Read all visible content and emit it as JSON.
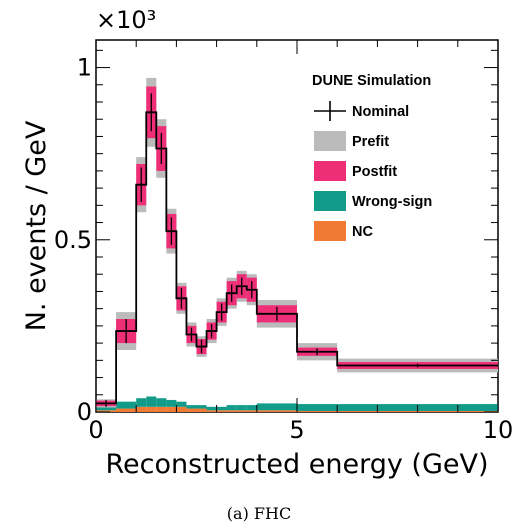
{
  "chart_data": {
    "type": "bar",
    "xlabel": "Reconstructed energy (GeV)",
    "ylabel": "N. events / GeV",
    "y_multiplier": "×10³",
    "xlim": [
      0,
      10
    ],
    "ylim": [
      0,
      1.08
    ],
    "x_tick_labels": [
      "0",
      "5",
      "10"
    ],
    "y_tick_labels": [
      "0",
      "0.5",
      "1"
    ],
    "bin_edges": [
      0,
      0.5,
      1.0,
      1.25,
      1.5,
      1.75,
      2.0,
      2.25,
      2.5,
      2.75,
      3.0,
      3.25,
      3.5,
      3.75,
      4.0,
      5.0,
      6.0,
      10.0
    ],
    "series": [
      {
        "name": "Nominal",
        "style": "errorbar",
        "color": "#000000",
        "values": [
          0.025,
          0.235,
          0.66,
          0.87,
          0.765,
          0.525,
          0.33,
          0.225,
          0.19,
          0.235,
          0.29,
          0.345,
          0.365,
          0.355,
          0.285,
          0.175,
          0.135
        ],
        "errors": [
          0.01,
          0.035,
          0.05,
          0.055,
          0.045,
          0.04,
          0.03,
          0.02,
          0.02,
          0.02,
          0.025,
          0.025,
          0.025,
          0.025,
          0.02,
          0.01,
          0.005
        ]
      },
      {
        "name": "Prefit",
        "style": "band",
        "color": "#bbbbbb",
        "values": [
          0.025,
          0.235,
          0.66,
          0.87,
          0.765,
          0.525,
          0.33,
          0.225,
          0.19,
          0.235,
          0.29,
          0.345,
          0.365,
          0.355,
          0.285,
          0.175,
          0.135
        ],
        "errors": [
          0.012,
          0.055,
          0.08,
          0.1,
          0.085,
          0.065,
          0.045,
          0.035,
          0.03,
          0.035,
          0.04,
          0.045,
          0.045,
          0.045,
          0.04,
          0.025,
          0.02
        ]
      },
      {
        "name": "Postfit",
        "style": "band",
        "color": "#ee2f78",
        "values": [
          0.025,
          0.235,
          0.66,
          0.87,
          0.765,
          0.525,
          0.33,
          0.225,
          0.19,
          0.235,
          0.29,
          0.345,
          0.365,
          0.355,
          0.285,
          0.175,
          0.135
        ],
        "errors": [
          0.008,
          0.035,
          0.06,
          0.075,
          0.065,
          0.05,
          0.035,
          0.025,
          0.022,
          0.025,
          0.03,
          0.035,
          0.035,
          0.035,
          0.025,
          0.012,
          0.01
        ]
      },
      {
        "name": "Wrong-sign",
        "style": "stack",
        "color": "#129b89",
        "values": [
          0.01,
          0.02,
          0.025,
          0.03,
          0.025,
          0.02,
          0.015,
          0.01,
          0.01,
          0.01,
          0.01,
          0.015,
          0.015,
          0.015,
          0.02,
          0.02,
          0.02
        ]
      },
      {
        "name": "NC",
        "style": "stack",
        "color": "#f07a32",
        "values": [
          0.005,
          0.01,
          0.015,
          0.015,
          0.015,
          0.015,
          0.015,
          0.01,
          0.01,
          0.005,
          0.005,
          0.005,
          0.005,
          0.005,
          0.005,
          0.003,
          0.003
        ]
      }
    ],
    "legend_title": "DUNE Simulation",
    "legend_position": "top-right",
    "grid": false,
    "caption": "(a) FHC"
  }
}
